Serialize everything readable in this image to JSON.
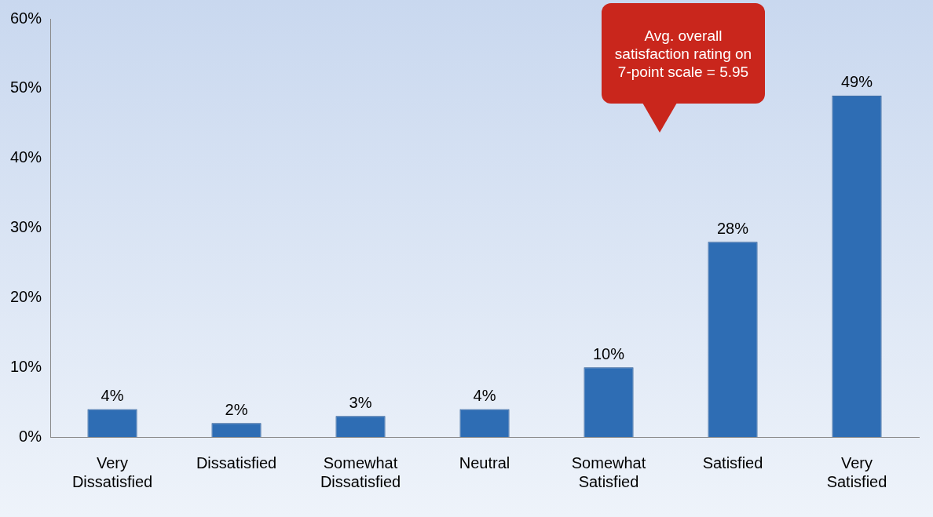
{
  "chart_data": {
    "type": "bar",
    "categories": [
      "Very Dissatisfied",
      "Dissatisfied",
      "Somewhat Dissatisfied",
      "Neutral",
      "Somewhat Satisfied",
      "Satisfied",
      "Very Satisfied"
    ],
    "values": [
      4,
      2,
      3,
      4,
      10,
      28,
      49
    ],
    "value_labels": [
      "4%",
      "2%",
      "3%",
      "4%",
      "10%",
      "28%",
      "49%"
    ],
    "color": "#2e6db4",
    "ylim": [
      0,
      60
    ],
    "yticks": [
      {
        "value": 0,
        "label": "0%"
      },
      {
        "value": 10,
        "label": "10%"
      },
      {
        "value": 20,
        "label": "20%"
      },
      {
        "value": 30,
        "label": "30%"
      },
      {
        "value": 40,
        "label": "40%"
      },
      {
        "value": 50,
        "label": "50%"
      },
      {
        "value": 60,
        "label": "60%"
      }
    ],
    "grid": false,
    "annotations": [
      "Avg. overall satisfaction rating on 7-point scale = 5.95"
    ]
  }
}
